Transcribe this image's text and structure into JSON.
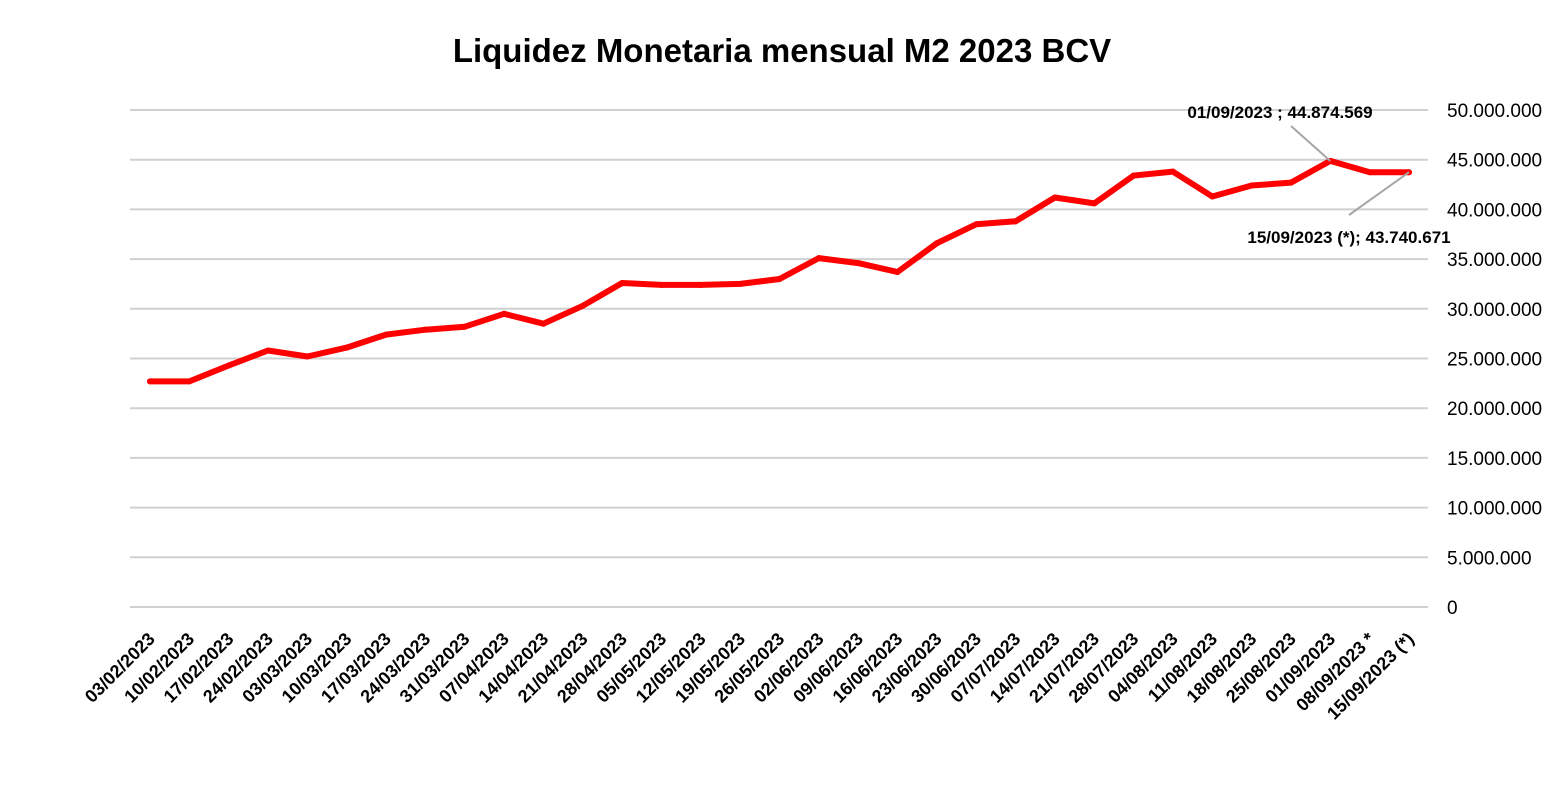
{
  "chart_data": {
    "type": "line",
    "title": "Liquidez Monetaria mensual M2 2023 BCV",
    "xlabel": "",
    "ylabel": "",
    "ylim": [
      0,
      50000000
    ],
    "yticks": [
      0,
      5000000,
      10000000,
      15000000,
      20000000,
      25000000,
      30000000,
      35000000,
      40000000,
      45000000,
      50000000
    ],
    "ytick_labels": [
      "0",
      "5.000.000",
      "10.000.000",
      "15.000.000",
      "20.000.000",
      "25.000.000",
      "30.000.000",
      "35.000.000",
      "40.000.000",
      "45.000.000",
      "50.000.000"
    ],
    "y_axis_side": "right",
    "grid": true,
    "legend": "none",
    "categories": [
      "03/02/2023",
      "10/02/2023",
      "17/02/2023",
      "24/02/2023",
      "03/03/2023",
      "10/03/2023",
      "17/03/2023",
      "24/03/2023",
      "31/03/2023",
      "07/04/2023",
      "14/04/2023",
      "21/04/2023",
      "28/04/2023",
      "05/05/2023",
      "12/05/2023",
      "19/05/2023",
      "26/05/2023",
      "02/06/2023",
      "09/06/2023",
      "16/06/2023",
      "23/06/2023",
      "30/06/2023",
      "07/07/2023",
      "14/07/2023",
      "21/07/2023",
      "28/07/2023",
      "04/08/2023",
      "11/08/2023",
      "18/08/2023",
      "25/08/2023",
      "01/09/2023",
      "08/09/2023 *",
      "15/09/2023 (*)"
    ],
    "series": [
      {
        "color": "#ff0000",
        "values": [
          22700000,
          22700000,
          24300000,
          25800000,
          25200000,
          26100000,
          27400000,
          27900000,
          28200000,
          29500000,
          28500000,
          30300000,
          32600000,
          32400000,
          32400000,
          32500000,
          33000000,
          35100000,
          34600000,
          33700000,
          36600000,
          38500000,
          38800000,
          41200000,
          40600000,
          43400000,
          43800000,
          41300000,
          42400000,
          42700000,
          44874569,
          43740000,
          43740671
        ]
      }
    ],
    "annotations": [
      {
        "text": "01/09/2023 ; 44.874.569",
        "category": "01/09/2023",
        "value": 44874569
      },
      {
        "text": "15/09/2023 (*); 43.740.671",
        "category": "15/09/2023 (*)",
        "value": 43740671
      }
    ]
  }
}
